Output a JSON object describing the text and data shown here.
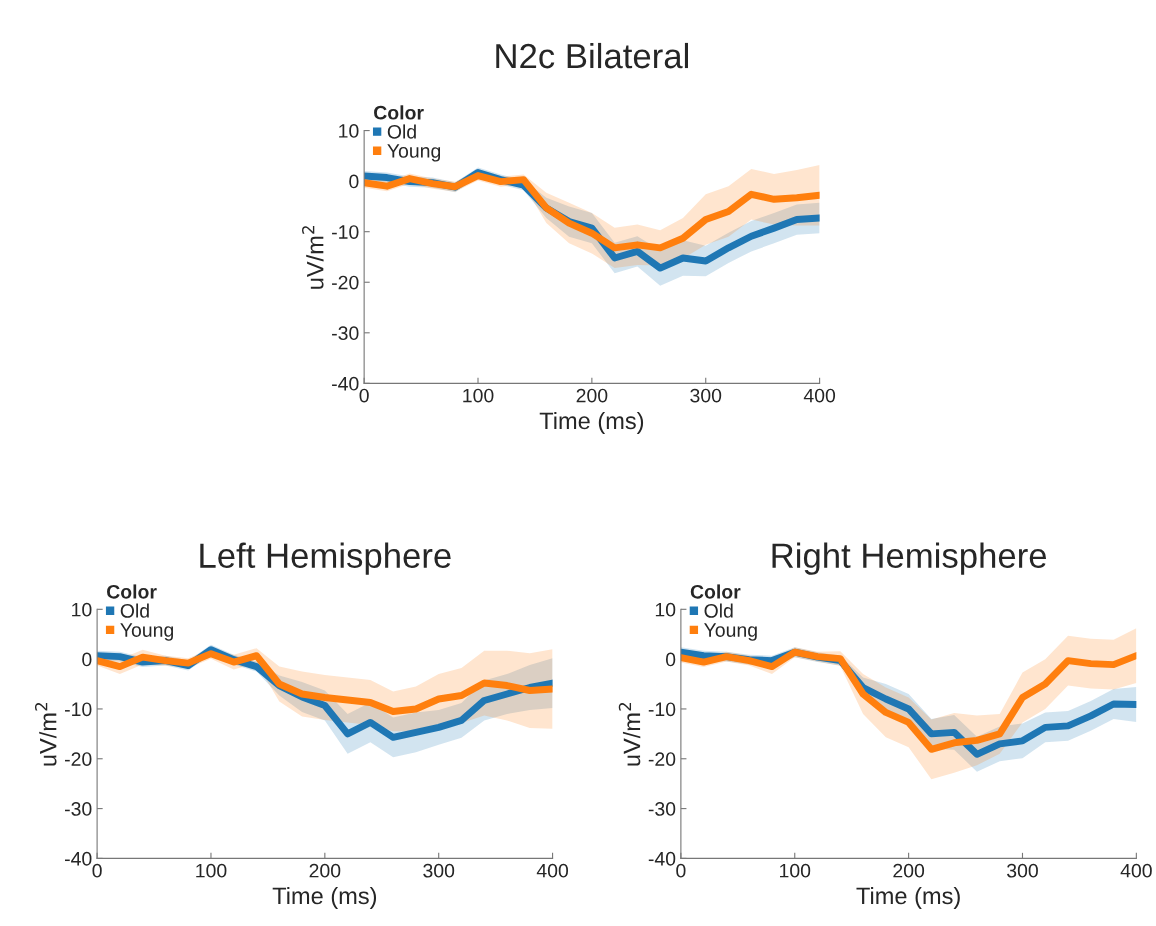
{
  "chart_data": [
    {
      "type": "line",
      "title": "N2c Bilateral",
      "xlabel": "Time (ms)",
      "ylabel": "uV/m$^{2}$",
      "legend_title": "Color",
      "legend": "top left",
      "grid": false,
      "x": [
        0,
        20,
        40,
        60,
        80,
        100,
        120,
        140,
        160,
        180,
        200,
        220,
        240,
        260,
        280,
        300,
        320,
        340,
        360,
        380,
        400
      ],
      "xlim": [
        0,
        400
      ],
      "xticks": [
        0,
        100,
        200,
        300,
        400
      ],
      "ylim": [
        -40,
        10
      ],
      "yticks": [
        -40,
        -30,
        -20,
        -10,
        0,
        10
      ],
      "series": [
        {
          "name": "Old",
          "color": "#1f77b4",
          "values": [
            1,
            0.7,
            -0.1,
            -0.3,
            -1.2,
            1.7,
            0.3,
            -0.8,
            -5.3,
            -8,
            -9.3,
            -15.2,
            -13.9,
            -17.2,
            -15.2,
            -15.8,
            -13.2,
            -10.9,
            -9.3,
            -7.6,
            -7.3
          ],
          "lower": [
            0,
            -0.3,
            -1.1,
            -1.3,
            -2.2,
            0.7,
            -0.7,
            -1.8,
            -7.3,
            -11,
            -12.3,
            -18.2,
            -16.9,
            -20.7,
            -18.7,
            -18.8,
            -16.2,
            -13.9,
            -12.3,
            -10.6,
            -10.3
          ],
          "upper": [
            2,
            1.7,
            0.9,
            0.7,
            -0.2,
            2.7,
            1.3,
            0.2,
            -3.3,
            -5,
            -6.3,
            -12.2,
            -10.9,
            -13.7,
            -11.7,
            -12.8,
            -10.2,
            -7.9,
            -6.3,
            -4.6,
            -4.3
          ]
        },
        {
          "name": "Young",
          "color": "#ff7f0e",
          "values": [
            -0.3,
            -1,
            0.5,
            -0.5,
            -1.1,
            1.1,
            -0.1,
            0.3,
            -5.3,
            -8.3,
            -10.3,
            -13.2,
            -12.6,
            -13.2,
            -11.3,
            -7.6,
            -6,
            -2.6,
            -3.6,
            -3.3,
            -2.8
          ],
          "lower": [
            -1.3,
            -2,
            -0.5,
            -1.5,
            -2.1,
            0.1,
            -1.1,
            -0.7,
            -8.3,
            -12.3,
            -14.3,
            -17.2,
            -16.6,
            -16.7,
            -15.3,
            -12.6,
            -11,
            -7.6,
            -8.6,
            -8.8,
            -8.8
          ],
          "upper": [
            0.7,
            0,
            1.5,
            0.5,
            -0.1,
            2.1,
            0.9,
            1.3,
            -2.3,
            -4.3,
            -6.3,
            -9.2,
            -8.6,
            -9.7,
            -7.3,
            -2.6,
            -1,
            2.4,
            1.4,
            2.2,
            3.2
          ]
        }
      ]
    },
    {
      "type": "line",
      "title": "Left Hemisphere",
      "xlabel": "Time (ms)",
      "ylabel": "uV/m$^{2}$",
      "legend_title": "Color",
      "legend": "top left",
      "grid": false,
      "x": [
        0,
        20,
        40,
        60,
        80,
        100,
        120,
        140,
        160,
        180,
        200,
        220,
        240,
        260,
        280,
        300,
        320,
        340,
        360,
        380,
        400
      ],
      "xlim": [
        0,
        400
      ],
      "xticks": [
        0,
        100,
        200,
        300,
        400
      ],
      "ylim": [
        -40,
        10
      ],
      "yticks": [
        -40,
        -30,
        -20,
        -10,
        0,
        10
      ],
      "series": [
        {
          "name": "Old",
          "color": "#1f77b4",
          "values": [
            0.7,
            0.5,
            -0.6,
            -0.3,
            -1.3,
            1.9,
            -0.1,
            -1.5,
            -5.3,
            -7.6,
            -9.3,
            -15,
            -12.7,
            -15.7,
            -14.7,
            -13.7,
            -12.3,
            -8.3,
            -7,
            -5.7,
            -4.8
          ],
          "lower": [
            -0.3,
            -0.5,
            -1.6,
            -1.3,
            -2.3,
            0.9,
            -1.1,
            -2.5,
            -7.3,
            -10.6,
            -12.3,
            -19,
            -16.7,
            -19.7,
            -18.7,
            -17.2,
            -15.8,
            -12.3,
            -11,
            -10.2,
            -9.8
          ],
          "upper": [
            1.7,
            1.5,
            0.4,
            0.7,
            -0.3,
            2.9,
            0.9,
            -0.5,
            -3.3,
            -4.6,
            -6.3,
            -11,
            -8.7,
            -11.7,
            -10.7,
            -10.2,
            -8.8,
            -4.3,
            -3,
            -1.2,
            0.2
          ]
        },
        {
          "name": "Young",
          "color": "#ff7f0e",
          "values": [
            -0.3,
            -1.5,
            0.4,
            -0.3,
            -0.8,
            1.1,
            -0.6,
            0.7,
            -5,
            -7,
            -7.7,
            -8.2,
            -8.7,
            -10.5,
            -10,
            -8,
            -7.3,
            -4.8,
            -5.3,
            -6.3,
            -6
          ],
          "lower": [
            -1.3,
            -3,
            -1.1,
            -1.3,
            -1.8,
            0.1,
            -2.1,
            -0.8,
            -8.5,
            -11.5,
            -12.2,
            -12.7,
            -13.2,
            -14.5,
            -14.5,
            -13,
            -12.8,
            -11.3,
            -12.3,
            -13.8,
            -14
          ],
          "upper": [
            0.7,
            0,
            1.9,
            0.7,
            0.2,
            2.1,
            0.9,
            2.2,
            -1.5,
            -2.5,
            -3.2,
            -3.7,
            -4.2,
            -6.5,
            -5.5,
            -3,
            -1.8,
            1.7,
            1.7,
            1.2,
            2
          ]
        }
      ]
    },
    {
      "type": "line",
      "title": "Right Hemisphere",
      "xlabel": "Time (ms)",
      "ylabel": "uV/m$^{2}$",
      "legend_title": "Color",
      "legend": "top left",
      "grid": false,
      "x": [
        0,
        20,
        40,
        60,
        80,
        100,
        120,
        140,
        160,
        180,
        200,
        220,
        240,
        260,
        280,
        300,
        320,
        340,
        360,
        380,
        400
      ],
      "xlim": [
        0,
        400
      ],
      "xticks": [
        0,
        100,
        200,
        300,
        400
      ],
      "ylim": [
        -40,
        10
      ],
      "yticks": [
        -40,
        -30,
        -20,
        -10,
        0,
        10
      ],
      "series": [
        {
          "name": "Old",
          "color": "#1f77b4",
          "values": [
            1.4,
            0.7,
            0.5,
            -0.1,
            -0.3,
            1.4,
            0.4,
            -0.3,
            -5.7,
            -8,
            -10,
            -15,
            -14.7,
            -19.1,
            -17,
            -16.4,
            -13.7,
            -13.4,
            -11.4,
            -9,
            -9.1
          ],
          "lower": [
            0.4,
            -0.3,
            -0.5,
            -1.1,
            -1.3,
            0.4,
            -0.6,
            -1.3,
            -7.7,
            -11,
            -13,
            -18,
            -18.2,
            -22.6,
            -20.5,
            -19.9,
            -16.7,
            -16.4,
            -14.4,
            -12,
            -12.6
          ],
          "upper": [
            2.4,
            1.7,
            1.5,
            0.9,
            0.7,
            2.4,
            1.4,
            0.7,
            -3.7,
            -5,
            -7,
            -12,
            -11.2,
            -15.6,
            -13.5,
            -12.9,
            -10.7,
            -10.4,
            -8.4,
            -6,
            -5.6
          ]
        },
        {
          "name": "Young",
          "color": "#ff7f0e",
          "values": [
            0.3,
            -0.6,
            0.5,
            -0.3,
            -1.5,
            1.4,
            0.5,
            0.1,
            -7,
            -10.7,
            -12.7,
            -18.1,
            -16.8,
            -16.3,
            -15,
            -7.7,
            -5,
            -0.3,
            -0.9,
            -1.1,
            0.7
          ],
          "lower": [
            -0.7,
            -1.6,
            -0.5,
            -1.3,
            -3,
            0.4,
            -0.5,
            -1.4,
            -11,
            -15.7,
            -17.7,
            -24.1,
            -22.8,
            -21.3,
            -19,
            -12.7,
            -10,
            -5.3,
            -5.9,
            -6.1,
            -4.8
          ],
          "upper": [
            1.3,
            0.4,
            1.5,
            0.7,
            0,
            2.4,
            1.5,
            1.6,
            -3,
            -5.7,
            -7.7,
            -12.1,
            -10.8,
            -11.3,
            -11,
            -2.7,
            0,
            4.7,
            4.1,
            3.9,
            6.2
          ]
        }
      ]
    }
  ]
}
